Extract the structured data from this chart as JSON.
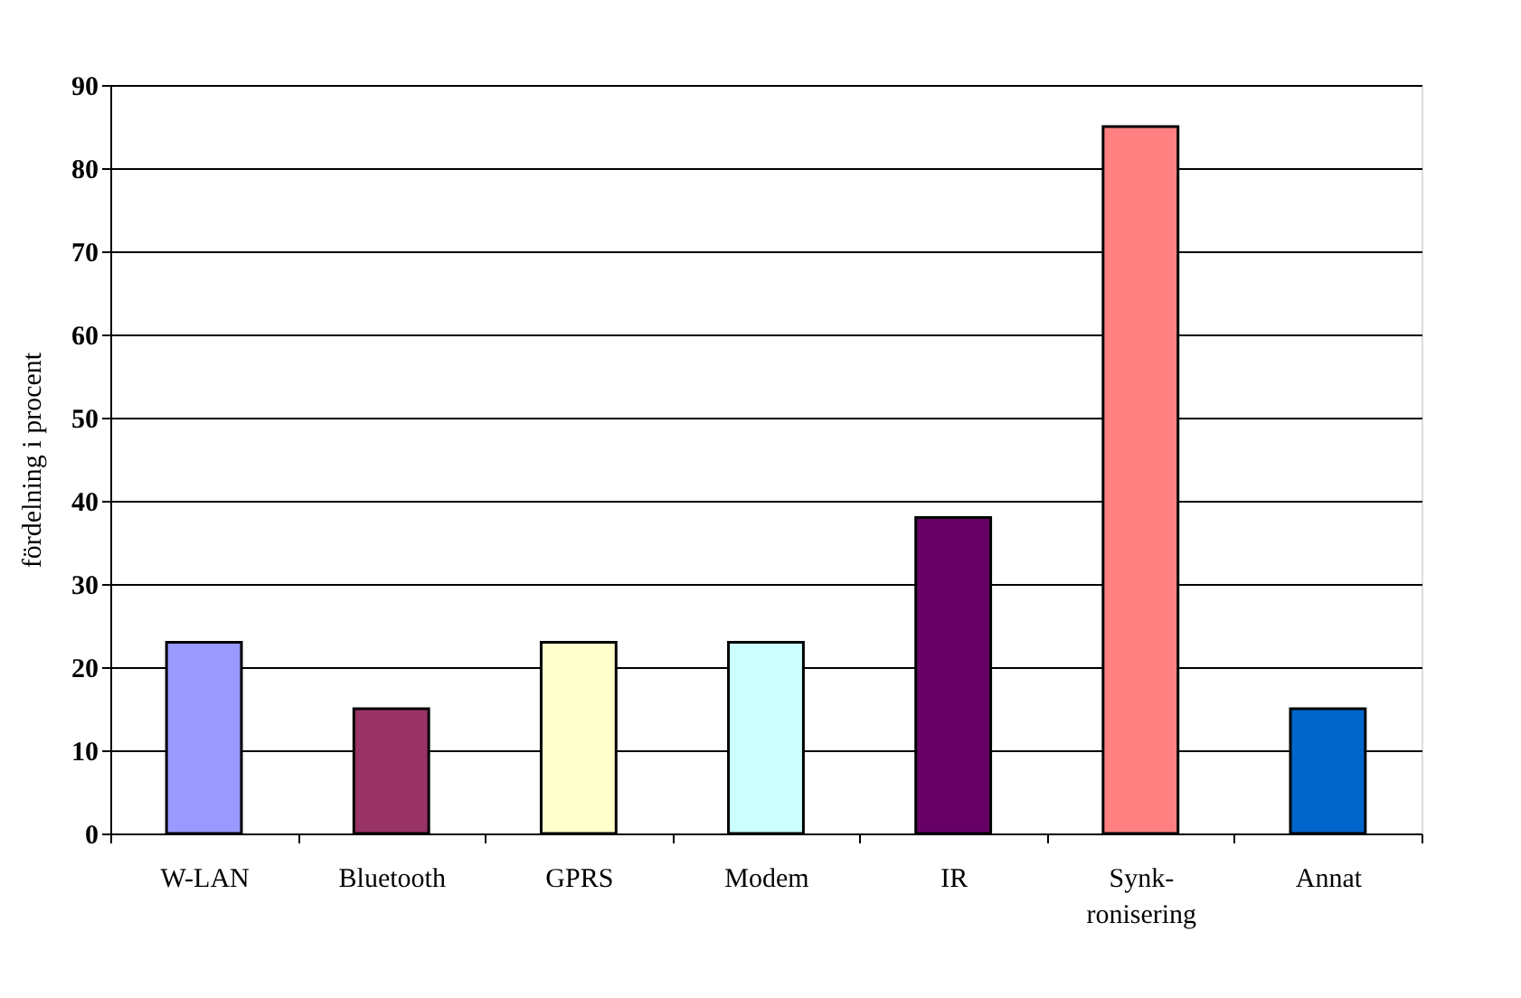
{
  "chart_data": {
    "type": "bar",
    "ylabel": "fördelning i procent",
    "categories": [
      "W-LAN",
      "Bluetooth",
      "GPRS",
      "Modem",
      "IR",
      "Synk-\nronisering",
      "Annat"
    ],
    "values": [
      23,
      15,
      23,
      23,
      38,
      85,
      15
    ],
    "colors": [
      "#9999ff",
      "#993366",
      "#ffffcc",
      "#ccffff",
      "#660066",
      "#ff8080",
      "#0066cc"
    ],
    "ylim": [
      0,
      90
    ],
    "yticks": [
      0,
      10,
      20,
      30,
      40,
      50,
      60,
      70,
      80,
      90
    ],
    "grid": "y"
  }
}
